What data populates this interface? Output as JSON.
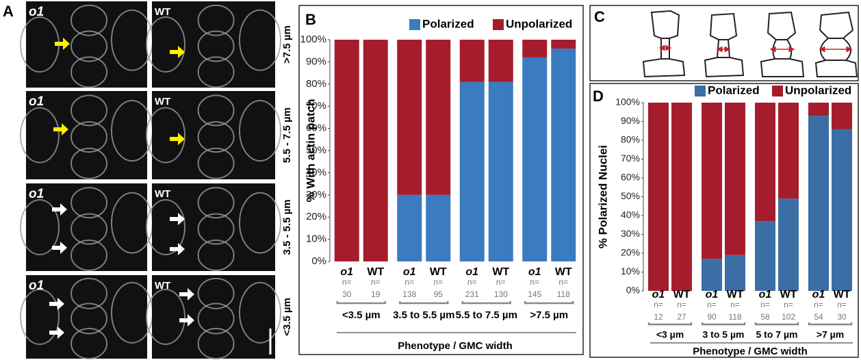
{
  "panel_labels": [
    "A",
    "B",
    "C",
    "D"
  ],
  "panel_a": {
    "rows": [
      {
        "width": ">7.5 µm",
        "images": [
          "o1",
          "WT"
        ]
      },
      {
        "width": "5.5 - 7.5 µm",
        "images": [
          "o1",
          "WT"
        ]
      },
      {
        "width": "3.5 - 5.5 µm",
        "images": [
          "o1",
          "WT"
        ]
      },
      {
        "width": "<3.5 µm",
        "images": [
          "o1",
          "WT"
        ]
      }
    ]
  },
  "chart_data": [
    {
      "type": "bar",
      "stacked": true,
      "y_label": "% With actin patch",
      "x_label": "Phenotype / GMC width",
      "categories": [
        "o1",
        "WT",
        "o1",
        "WT",
        "o1",
        "WT",
        "o1",
        "WT"
      ],
      "n_prefix": "n=",
      "n": [
        30,
        19,
        138,
        95,
        231,
        130,
        145,
        118
      ],
      "groups": [
        "<3.5 µm",
        "3.5 to 5.5 µm",
        "5.5 to 7.5 µm",
        ">7.5 µm"
      ],
      "series": [
        {
          "name": "Polarized",
          "color": "#3b7bbf",
          "values": [
            0,
            0,
            30,
            30,
            81,
            81,
            92,
            96
          ]
        },
        {
          "name": "Unpolarized",
          "color": "#a51d2d",
          "values": [
            100,
            100,
            70,
            70,
            19,
            19,
            8,
            4
          ]
        }
      ],
      "ylim": [
        0,
        100
      ],
      "yticks": [
        {
          "value": 0,
          "label": "0%"
        },
        {
          "value": 10,
          "label": "10%"
        },
        {
          "value": 20,
          "label": "20%"
        },
        {
          "value": 30,
          "label": "30%"
        },
        {
          "value": 40,
          "label": "40%"
        },
        {
          "value": 50,
          "label": "50%"
        },
        {
          "value": 60,
          "label": "60%"
        },
        {
          "value": 70,
          "label": "70%"
        },
        {
          "value": 80,
          "label": "80%"
        },
        {
          "value": 90,
          "label": "90%"
        },
        {
          "value": 100,
          "label": "100%"
        }
      ]
    },
    {
      "type": "bar",
      "stacked": true,
      "y_label": "% Polarized Nuclei",
      "x_label": "Phenotype / GMC width",
      "categories": [
        "o1",
        "WT",
        "o1",
        "WT",
        "o1",
        "WT",
        "o1",
        "WT"
      ],
      "n_prefix": "n=",
      "n": [
        12,
        27,
        90,
        118,
        58,
        102,
        54,
        30
      ],
      "groups": [
        "<3 µm",
        "3 to 5 µm",
        "5 to 7 µm",
        ">7 µm"
      ],
      "series": [
        {
          "name": "Polarized",
          "color": "#3b6ea5",
          "values": [
            0,
            0,
            17,
            19,
            37,
            49,
            93,
            86
          ]
        },
        {
          "name": "Unpolarized",
          "color": "#a51d2d",
          "values": [
            100,
            100,
            83,
            81,
            63,
            51,
            7,
            14
          ]
        }
      ],
      "ylim": [
        0,
        100
      ],
      "yticks": [
        {
          "value": 0,
          "label": "0%"
        },
        {
          "value": 10,
          "label": "10%"
        },
        {
          "value": 20,
          "label": "20%"
        },
        {
          "value": 30,
          "label": "30%"
        },
        {
          "value": 40,
          "label": "40%"
        },
        {
          "value": 50,
          "label": "50%"
        },
        {
          "value": 60,
          "label": "60%"
        },
        {
          "value": 70,
          "label": "70%"
        },
        {
          "value": 80,
          "label": "80%"
        },
        {
          "value": 90,
          "label": "90%"
        },
        {
          "value": 100,
          "label": "100%"
        }
      ]
    }
  ]
}
